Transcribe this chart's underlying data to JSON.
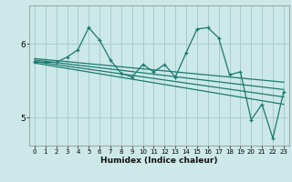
{
  "xlabel": "Humidex (Indice chaleur)",
  "ylabel": "",
  "bg_color": "#cce8e8",
  "grid_color": "#aacccc",
  "line_color": "#1a7a6e",
  "xlim": [
    -0.5,
    23.5
  ],
  "ylim": [
    4.62,
    6.52
  ],
  "yticks": [
    5,
    6
  ],
  "xticks": [
    0,
    1,
    2,
    3,
    4,
    5,
    6,
    7,
    8,
    9,
    10,
    11,
    12,
    13,
    14,
    15,
    16,
    17,
    18,
    19,
    20,
    21,
    22,
    23
  ],
  "zigzag_x": [
    0,
    1,
    2,
    3,
    4,
    5,
    6,
    7,
    8,
    9,
    10,
    11,
    12,
    13,
    14,
    15,
    16,
    17,
    18,
    19,
    20,
    21,
    22,
    23
  ],
  "zigzag_y": [
    5.75,
    5.75,
    5.75,
    5.82,
    5.92,
    6.22,
    6.05,
    5.78,
    5.6,
    5.55,
    5.72,
    5.62,
    5.72,
    5.55,
    5.88,
    6.2,
    6.22,
    6.08,
    5.58,
    5.62,
    4.97,
    5.18,
    4.72,
    5.35
  ],
  "trend1_x": [
    0,
    23
  ],
  "trend1_y": [
    5.8,
    5.48
  ],
  "trend2_x": [
    0,
    23
  ],
  "trend2_y": [
    5.78,
    5.38
  ],
  "trend3_x": [
    0,
    23
  ],
  "trend3_y": [
    5.76,
    5.28
  ],
  "trend4_x": [
    0,
    23
  ],
  "trend4_y": [
    5.74,
    5.18
  ]
}
